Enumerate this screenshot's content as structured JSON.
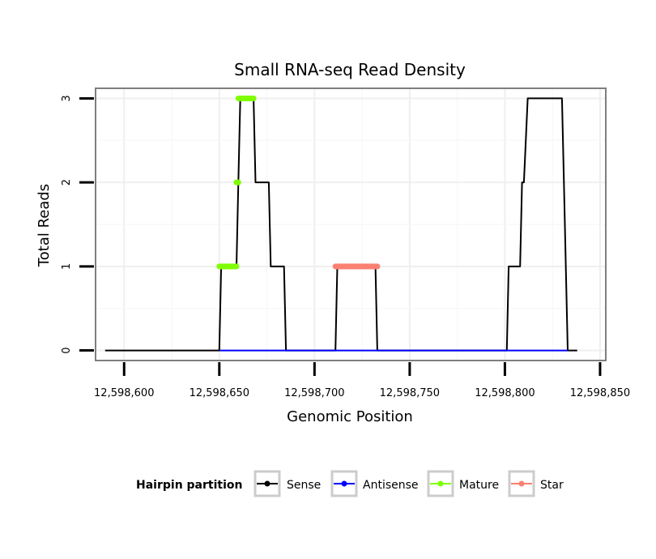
{
  "chart_data": {
    "type": "line",
    "title": "Small RNA-seq Read Density",
    "xlabel": "Genomic Position",
    "ylabel": "Total Reads",
    "xlim": [
      12598585,
      12598853
    ],
    "ylim": [
      -0.12,
      3.12
    ],
    "x_ticks": [
      12598600,
      12598650,
      12598700,
      12598750,
      12598800,
      12598850
    ],
    "x_tick_labels": [
      "12,598,600",
      "12,598,650",
      "12,598,700",
      "12,598,750",
      "12,598,800",
      "12,598,850"
    ],
    "y_ticks": [
      0,
      1,
      2,
      3
    ],
    "y_tick_labels": [
      "0",
      "1",
      "2",
      "3"
    ],
    "grid": true,
    "legend": {
      "title": "Hairpin partition",
      "position": "bottom",
      "entries": [
        {
          "label": "Sense",
          "color": "#000000"
        },
        {
          "label": "Antisense",
          "color": "#0000ff"
        },
        {
          "label": "Mature",
          "color": "#7fff00"
        },
        {
          "label": "Star",
          "color": "#fa8072"
        }
      ]
    },
    "series": [
      {
        "name": "Sense",
        "color": "#000000",
        "points": [
          [
            12598590,
            0
          ],
          [
            12598650,
            0
          ],
          [
            12598651,
            1
          ],
          [
            12598659,
            1
          ],
          [
            12598660,
            2
          ],
          [
            12598661,
            3
          ],
          [
            12598668,
            3
          ],
          [
            12598669,
            2
          ],
          [
            12598676,
            2
          ],
          [
            12598677,
            1
          ],
          [
            12598684,
            1
          ],
          [
            12598685,
            0
          ],
          [
            12598711,
            0
          ],
          [
            12598712,
            1
          ],
          [
            12598732,
            1
          ],
          [
            12598733,
            0
          ],
          [
            12598801,
            0
          ],
          [
            12598802,
            1
          ],
          [
            12598808,
            1
          ],
          [
            12598809,
            2
          ],
          [
            12598810,
            2
          ],
          [
            12598812,
            3
          ],
          [
            12598830,
            3
          ],
          [
            12598831,
            2
          ],
          [
            12598833,
            0
          ],
          [
            12598838,
            0
          ]
        ]
      },
      {
        "name": "Antisense",
        "color": "#0000ff",
        "points": [
          [
            12598650,
            0
          ],
          [
            12598833,
            0
          ]
        ]
      },
      {
        "name": "Mature",
        "color": "#7fff00",
        "segments": [
          [
            [
              12598650,
              1
            ],
            [
              12598659,
              1
            ]
          ],
          [
            [
              12598659,
              2
            ],
            [
              12598660,
              2
            ]
          ],
          [
            [
              12598660,
              3
            ],
            [
              12598668,
              3
            ]
          ]
        ]
      },
      {
        "name": "Star",
        "color": "#fa8072",
        "segments": [
          [
            [
              12598711,
              1
            ],
            [
              12598733,
              1
            ]
          ]
        ]
      }
    ]
  }
}
